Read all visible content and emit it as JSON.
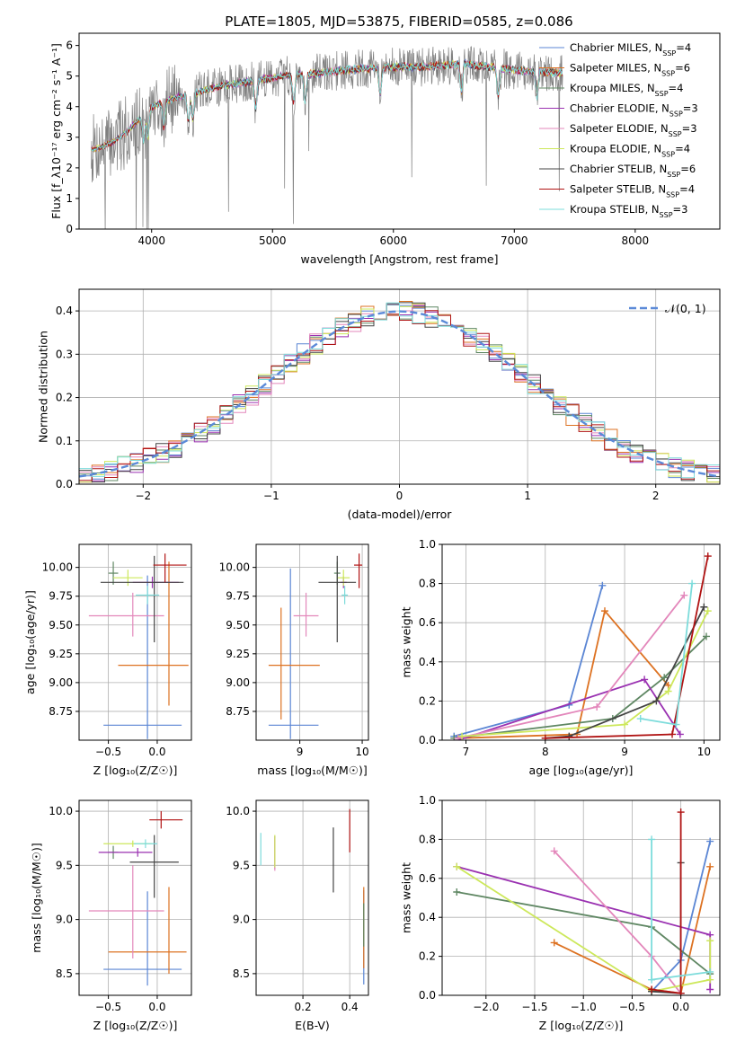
{
  "figure": {
    "title": "PLATE=1805, MJD=53875, FIBERID=0585, z=0.086",
    "colors": {
      "Chabrier MILES": "#5b86d4",
      "Salpeter MILES": "#dd7222",
      "Kroupa MILES": "#5f8763",
      "Chabrier ELODIE": "#9a31b1",
      "Salpeter ELODIE": "#e387bb",
      "Kroupa ELODIE": "#cde85b",
      "Chabrier STELIB": "#444444",
      "Salpeter STELIB": "#b01313",
      "Kroupa STELIB": "#7ddcdb",
      "data": "#7f7f7f",
      "gaussian": "#5b8ad8"
    }
  },
  "chart_data": [
    {
      "id": "spectrum",
      "type": "line",
      "title": "PLATE=1805, MJD=53875, FIBERID=0585, z=0.086",
      "xlabel": "wavelength [Angstrom, rest frame]",
      "ylabel": "Flux [f_λ10⁻¹⁷ erg cm⁻² s⁻¹ A⁻¹]",
      "xlim": [
        3400,
        8700
      ],
      "ylim": [
        0,
        6.4
      ],
      "xticks": [
        4000,
        5000,
        6000,
        7000,
        8000
      ],
      "yticks": [
        0,
        1,
        2,
        3,
        4,
        5,
        6
      ],
      "grid": false,
      "legend_position": "right",
      "legend": [
        {
          "label": "Chabrier MILES, N",
          "sub": "SSP",
          "suffix": "=4"
        },
        {
          "label": "Salpeter MILES, N",
          "sub": "SSP",
          "suffix": "=6"
        },
        {
          "label": "Kroupa MILES, N",
          "sub": "SSP",
          "suffix": "=4"
        },
        {
          "label": "Chabrier ELODIE, N",
          "sub": "SSP",
          "suffix": "=3"
        },
        {
          "label": "Salpeter ELODIE, N",
          "sub": "SSP",
          "suffix": "=3"
        },
        {
          "label": "Kroupa ELODIE, N",
          "sub": "SSP",
          "suffix": "=4"
        },
        {
          "label": "Chabrier STELIB, N",
          "sub": "SSP",
          "suffix": "=6"
        },
        {
          "label": "Salpeter STELIB, N",
          "sub": "SSP",
          "suffix": "=4"
        },
        {
          "label": "Kroupa STELIB, N",
          "sub": "SSP",
          "suffix": "=3"
        }
      ],
      "continuum": {
        "x": [
          3500,
          3600,
          3700,
          3800,
          3900,
          4000,
          4200,
          4400,
          4600,
          4800,
          5000,
          5200,
          5400,
          5600,
          5800,
          6000,
          6200,
          6400,
          6600,
          6800,
          7000,
          7200,
          7400
        ],
        "y": [
          2.6,
          2.7,
          2.9,
          3.2,
          3.6,
          4.0,
          4.3,
          4.5,
          4.7,
          4.8,
          4.95,
          5.05,
          5.1,
          5.2,
          5.25,
          5.3,
          5.3,
          5.35,
          5.4,
          5.3,
          5.2,
          5.15,
          5.1
        ]
      },
      "absorption_lines": [
        3934,
        3969,
        4102,
        4304,
        4341,
        4861,
        5175,
        5270,
        5890,
        6563,
        6867,
        7186
      ]
    },
    {
      "id": "residuals",
      "type": "line",
      "xlabel": "(data-model)/error",
      "ylabel": "Normed distribution",
      "xlim": [
        -2.5,
        2.5
      ],
      "ylim": [
        0,
        0.45
      ],
      "xticks": [
        -2,
        -1,
        0,
        1,
        2
      ],
      "yticks": [
        0.0,
        0.1,
        0.2,
        0.3,
        0.4
      ],
      "grid": true,
      "legend_position": "top-right",
      "legend_label": "𝒩(0, 1)",
      "bin_width": 0.1
    },
    {
      "id": "age-vs-Z",
      "type": "scatter",
      "xlabel": "Z [log₁₀(Z/Z☉)]",
      "ylabel": "age  [log₁₀(age/yr)]",
      "xlim": [
        -0.8,
        0.35
      ],
      "ylim": [
        8.5,
        10.2
      ],
      "xticks": [
        -0.5,
        0.0
      ],
      "yticks": [
        8.75,
        9.0,
        9.25,
        9.5,
        9.75,
        10.0
      ],
      "grid": true,
      "points": [
        {
          "model": "Chabrier MILES",
          "x": -0.1,
          "xerr": [
            0.45,
            0.35
          ],
          "y": 8.63,
          "yerr": [
            0.12,
            1.3
          ]
        },
        {
          "model": "Salpeter MILES",
          "x": 0.12,
          "xerr": [
            0.52,
            0.2
          ],
          "y": 9.15,
          "yerr": [
            0.35,
            0.9
          ]
        },
        {
          "model": "Kroupa MILES",
          "x": -0.45,
          "xerr": [
            0.05,
            0.05
          ],
          "y": 9.95,
          "yerr": [
            0.1,
            0.1
          ]
        },
        {
          "model": "Chabrier ELODIE",
          "x": -0.05,
          "xerr": [
            0.2,
            0.27
          ],
          "y": 9.87,
          "yerr": [
            0.05,
            0.05
          ]
        },
        {
          "model": "Salpeter ELODIE",
          "x": -0.25,
          "xerr": [
            0.45,
            0.32
          ],
          "y": 9.58,
          "yerr": [
            0.18,
            0.2
          ]
        },
        {
          "model": "Kroupa ELODIE",
          "x": -0.3,
          "xerr": [
            0.15,
            0.15
          ],
          "y": 9.91,
          "yerr": [
            0.07,
            0.07
          ]
        },
        {
          "model": "Chabrier STELIB",
          "x": -0.03,
          "xerr": [
            0.55,
            0.3
          ],
          "y": 9.87,
          "yerr": [
            0.52,
            0.23
          ]
        },
        {
          "model": "Salpeter STELIB",
          "x": 0.08,
          "xerr": [
            0.12,
            0.22
          ],
          "y": 10.02,
          "yerr": [
            0.15,
            0.1
          ]
        },
        {
          "model": "Kroupa STELIB",
          "x": -0.1,
          "xerr": [
            0.12,
            0.12
          ],
          "y": 9.76,
          "yerr": [
            0.08,
            0.08
          ]
        }
      ]
    },
    {
      "id": "age-vs-mass",
      "type": "scatter",
      "xlabel": "mass [log₁₀(M/M☉)]",
      "ylabel": "",
      "xlim": [
        8.3,
        10.1
      ],
      "ylim": [
        8.5,
        10.2
      ],
      "xticks": [
        9,
        10
      ],
      "yticks": [
        8.75,
        9.0,
        9.25,
        9.5,
        9.75,
        10.0
      ],
      "grid": true,
      "points": [
        {
          "model": "Chabrier MILES",
          "x": 8.85,
          "xerr": [
            0.35,
            0.45
          ],
          "y": 8.63,
          "yerr": [
            0.12,
            1.36
          ]
        },
        {
          "model": "Salpeter MILES",
          "x": 8.7,
          "xerr": [
            0.2,
            0.62
          ],
          "y": 9.15,
          "yerr": [
            0.47,
            0.5
          ]
        },
        {
          "model": "Kroupa MILES",
          "x": 9.6,
          "xerr": [
            0.05,
            0.05
          ],
          "y": 9.95,
          "yerr": [
            0.1,
            0.1
          ]
        },
        {
          "model": "Chabrier ELODIE",
          "x": 9.7,
          "xerr": [
            0.05,
            0.05
          ],
          "y": 9.87,
          "yerr": [
            0.05,
            0.05
          ]
        },
        {
          "model": "Salpeter ELODIE",
          "x": 9.1,
          "xerr": [
            0.2,
            0.2
          ],
          "y": 9.58,
          "yerr": [
            0.18,
            0.2
          ]
        },
        {
          "model": "Kroupa ELODIE",
          "x": 9.7,
          "xerr": [
            0.1,
            0.1
          ],
          "y": 9.91,
          "yerr": [
            0.07,
            0.07
          ]
        },
        {
          "model": "Chabrier STELIB",
          "x": 9.6,
          "xerr": [
            0.3,
            0.3
          ],
          "y": 9.87,
          "yerr": [
            0.52,
            0.23
          ]
        },
        {
          "model": "Salpeter STELIB",
          "x": 9.95,
          "xerr": [
            0.08,
            0.05
          ],
          "y": 10.02,
          "yerr": [
            0.2,
            0.1
          ]
        },
        {
          "model": "Kroupa STELIB",
          "x": 9.72,
          "xerr": [
            0.05,
            0.05
          ],
          "y": 9.76,
          "yerr": [
            0.08,
            0.08
          ]
        }
      ]
    },
    {
      "id": "weight-vs-age",
      "type": "line",
      "xlabel": "age  [log₁₀(age/yr)]",
      "ylabel": "mass weight",
      "xlim": [
        6.7,
        10.2
      ],
      "ylim": [
        0,
        1.0
      ],
      "xticks": [
        7,
        8,
        9,
        10
      ],
      "yticks": [
        0.0,
        0.2,
        0.4,
        0.6,
        0.8,
        1.0
      ],
      "grid": true,
      "series": [
        {
          "model": "Chabrier MILES",
          "x": [
            6.85,
            8.3,
            8.72
          ],
          "y": [
            0.02,
            0.18,
            0.79
          ]
        },
        {
          "model": "Salpeter MILES",
          "x": [
            6.9,
            8.4,
            8.75,
            9.55
          ],
          "y": [
            0.01,
            0.03,
            0.66,
            0.28
          ]
        },
        {
          "model": "Kroupa MILES",
          "x": [
            6.85,
            8.85,
            9.5,
            10.03
          ],
          "y": [
            0.01,
            0.11,
            0.32,
            0.53
          ]
        },
        {
          "model": "Chabrier ELODIE",
          "x": [
            6.9,
            9.25,
            9.7
          ],
          "y": [
            0.0,
            0.31,
            0.03
          ]
        },
        {
          "model": "Salpeter ELODIE",
          "x": [
            6.9,
            8.65,
            9.75
          ],
          "y": [
            0.01,
            0.17,
            0.74
          ]
        },
        {
          "model": "Kroupa ELODIE",
          "x": [
            6.95,
            9.0,
            9.55,
            10.05
          ],
          "y": [
            0.02,
            0.08,
            0.25,
            0.66
          ]
        },
        {
          "model": "Chabrier STELIB",
          "x": [
            8.0,
            8.3,
            9.4,
            10.0
          ],
          "y": [
            0.01,
            0.02,
            0.2,
            0.68
          ]
        },
        {
          "model": "Salpeter STELIB",
          "x": [
            8.0,
            9.6,
            10.05
          ],
          "y": [
            0.01,
            0.03,
            0.94
          ]
        },
        {
          "model": "Kroupa STELIB",
          "x": [
            9.2,
            9.65,
            9.85
          ],
          "y": [
            0.11,
            0.08,
            0.8
          ]
        }
      ]
    },
    {
      "id": "mass-vs-Z",
      "type": "scatter",
      "xlabel": "Z [log₁₀(Z/Z☉)]",
      "ylabel": "mass [log₁₀(M/M☉)]",
      "xlim": [
        -0.8,
        0.35
      ],
      "ylim": [
        8.3,
        10.1
      ],
      "xticks": [
        -0.5,
        0.0
      ],
      "yticks": [
        8.5,
        9.0,
        9.5,
        10.0
      ],
      "grid": true,
      "points": [
        {
          "model": "Chabrier MILES",
          "x": -0.1,
          "xerr": [
            0.45,
            0.35
          ],
          "y": 8.54,
          "yerr": [
            0.15,
            0.72
          ]
        },
        {
          "model": "Salpeter MILES",
          "x": 0.12,
          "xerr": [
            0.62,
            0.18
          ],
          "y": 8.7,
          "yerr": [
            0.2,
            0.6
          ]
        },
        {
          "model": "Kroupa MILES",
          "x": -0.45,
          "xerr": [
            0.05,
            0.05
          ],
          "y": 9.62,
          "yerr": [
            0.06,
            0.06
          ]
        },
        {
          "model": "Chabrier ELODIE",
          "x": -0.2,
          "xerr": [
            0.4,
            0.15
          ],
          "y": 9.62,
          "yerr": [
            0.04,
            0.04
          ]
        },
        {
          "model": "Salpeter ELODIE",
          "x": -0.25,
          "xerr": [
            0.45,
            0.32
          ],
          "y": 9.08,
          "yerr": [
            0.44,
            0.42
          ]
        },
        {
          "model": "Kroupa ELODIE",
          "x": -0.25,
          "xerr": [
            0.3,
            0.2
          ],
          "y": 9.7,
          "yerr": [
            0.03,
            0.03
          ]
        },
        {
          "model": "Chabrier STELIB",
          "x": -0.03,
          "xerr": [
            0.25,
            0.25
          ],
          "y": 9.53,
          "yerr": [
            0.33,
            0.25
          ]
        },
        {
          "model": "Salpeter STELIB",
          "x": 0.04,
          "xerr": [
            0.12,
            0.22
          ],
          "y": 9.92,
          "yerr": [
            0.08,
            0.08
          ]
        },
        {
          "model": "Kroupa STELIB",
          "x": -0.12,
          "xerr": [
            0.12,
            0.12
          ],
          "y": 9.7,
          "yerr": [
            0.04,
            0.04
          ]
        }
      ]
    },
    {
      "id": "mass-vs-EBV",
      "type": "scatter",
      "xlabel": "E(B-V)",
      "ylabel": "",
      "xlim": [
        0.0,
        0.48
      ],
      "ylim": [
        8.3,
        10.1
      ],
      "xticks": [
        0.2,
        0.4
      ],
      "yticks": [
        8.5,
        9.0,
        9.5,
        10.0
      ],
      "grid": true,
      "points": [
        {
          "model": "Chabrier MILES",
          "x": 0.46,
          "y": 8.9,
          "yerr": [
            0.5,
            0.37
          ]
        },
        {
          "model": "Salpeter MILES",
          "x": 0.46,
          "y": 8.8,
          "yerr": [
            0.25,
            0.5
          ]
        },
        {
          "model": "Kroupa MILES",
          "x": 0.46,
          "y": 8.95,
          "yerr": [
            0.2,
            0.2
          ]
        },
        {
          "model": "Chabrier ELODIE",
          "x": 0.08,
          "y": 9.62,
          "yerr": [
            0.15,
            0.15
          ]
        },
        {
          "model": "Salpeter ELODIE",
          "x": 0.08,
          "y": 9.6,
          "yerr": [
            0.15,
            0.15
          ]
        },
        {
          "model": "Kroupa ELODIE",
          "x": 0.08,
          "y": 9.63,
          "yerr": [
            0.15,
            0.15
          ]
        },
        {
          "model": "Chabrier STELIB",
          "x": 0.33,
          "y": 9.55,
          "yerr": [
            0.3,
            0.3
          ]
        },
        {
          "model": "Salpeter STELIB",
          "x": 0.4,
          "y": 9.8,
          "yerr": [
            0.18,
            0.22
          ]
        },
        {
          "model": "Kroupa STELIB",
          "x": 0.02,
          "y": 9.65,
          "yerr": [
            0.15,
            0.15
          ]
        }
      ]
    },
    {
      "id": "weight-vs-Z",
      "type": "line",
      "xlabel": "Z [log₁₀(Z/Z☉)]",
      "ylabel": "mass weight",
      "xlim": [
        -2.45,
        0.4
      ],
      "ylim": [
        0,
        1.0
      ],
      "xticks": [
        -2.0,
        -1.5,
        -1.0,
        -0.5,
        0.0
      ],
      "yticks": [
        0.0,
        0.2,
        0.4,
        0.6,
        0.8,
        1.0
      ],
      "grid": true,
      "series": [
        {
          "model": "Chabrier MILES",
          "x": [
            -0.3,
            0.0,
            0.3
          ],
          "y": [
            0.02,
            0.18,
            0.79
          ]
        },
        {
          "model": "Salpeter MILES",
          "x": [
            -1.3,
            -0.3,
            0.0,
            0.3
          ],
          "y": [
            0.27,
            0.03,
            0.01,
            0.66
          ]
        },
        {
          "model": "Kroupa MILES",
          "x": [
            -2.3,
            -0.3,
            0.3
          ],
          "y": [
            0.53,
            0.35,
            0.11
          ]
        },
        {
          "model": "Chabrier ELODIE",
          "x": [
            -2.3,
            0.3,
            0.3
          ],
          "y": [
            0.66,
            0.31,
            0.03
          ]
        },
        {
          "model": "Salpeter ELODIE",
          "x": [
            -1.3,
            -0.3,
            0.0
          ],
          "y": [
            0.74,
            0.2,
            0.01
          ]
        },
        {
          "model": "Kroupa ELODIE",
          "x": [
            -2.3,
            -0.3,
            0.3,
            0.3
          ],
          "y": [
            0.66,
            0.02,
            0.08,
            0.28
          ]
        },
        {
          "model": "Chabrier STELIB",
          "x": [
            -0.3,
            0.0,
            0.0
          ],
          "y": [
            0.02,
            0.01,
            0.68
          ]
        },
        {
          "model": "Salpeter STELIB",
          "x": [
            -0.3,
            0.0,
            0.0
          ],
          "y": [
            0.03,
            0.01,
            0.94
          ]
        },
        {
          "model": "Kroupa STELIB",
          "x": [
            -0.3,
            -0.3,
            0.3
          ],
          "y": [
            0.8,
            0.08,
            0.12
          ]
        }
      ]
    }
  ]
}
